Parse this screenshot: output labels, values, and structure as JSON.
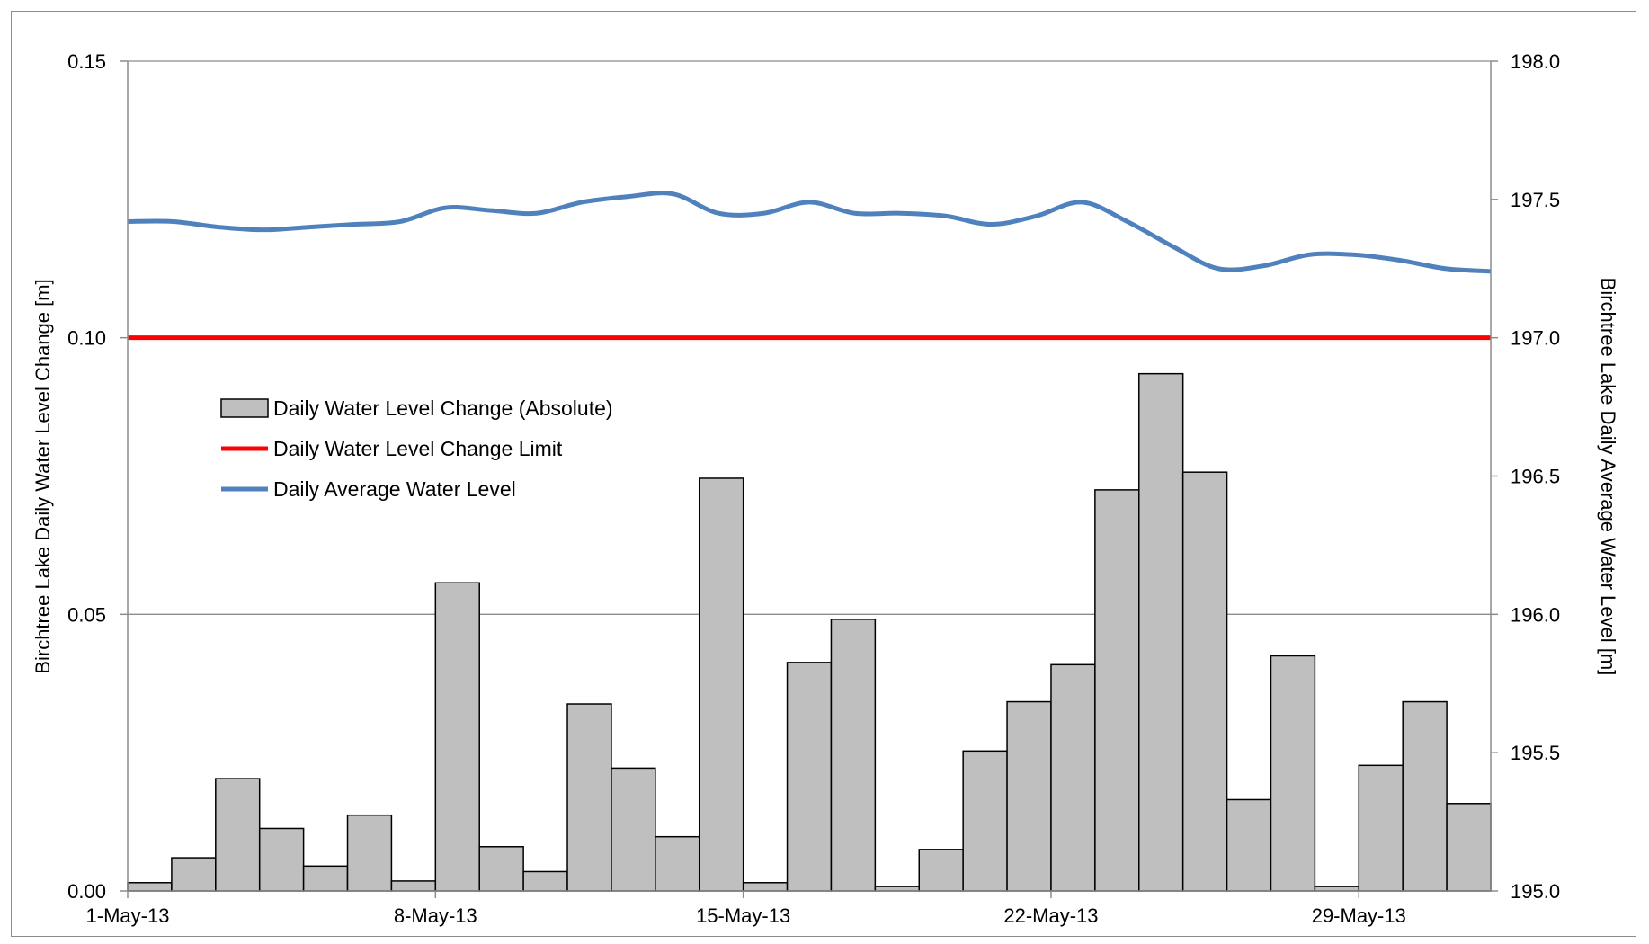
{
  "chart_data": {
    "type": "bar",
    "dates": [
      "1-May-13",
      "2-May-13",
      "3-May-13",
      "4-May-13",
      "5-May-13",
      "6-May-13",
      "7-May-13",
      "8-May-13",
      "9-May-13",
      "10-May-13",
      "11-May-13",
      "12-May-13",
      "13-May-13",
      "14-May-13",
      "15-May-13",
      "16-May-13",
      "17-May-13",
      "18-May-13",
      "19-May-13",
      "20-May-13",
      "21-May-13",
      "22-May-13",
      "23-May-13",
      "24-May-13",
      "25-May-13",
      "26-May-13",
      "27-May-13",
      "28-May-13",
      "29-May-13",
      "30-May-13",
      "31-May-13"
    ],
    "x_tick_labels": [
      "1-May-13",
      "8-May-13",
      "15-May-13",
      "22-May-13",
      "29-May-13"
    ],
    "x_tick_indices": [
      0,
      7,
      14,
      21,
      28
    ],
    "series": [
      {
        "name": "Daily Water Level Change (Absolute)",
        "type": "bar",
        "axis": "left",
        "color": "#bfbfbf",
        "values": [
          0.0015,
          0.006,
          0.0203,
          0.0113,
          0.0045,
          0.0137,
          0.0018,
          0.0557,
          0.008,
          0.0035,
          0.0338,
          0.0222,
          0.0098,
          0.0746,
          0.0015,
          0.0413,
          0.0491,
          0.0008,
          0.0075,
          0.0253,
          0.0342,
          0.0409,
          0.0725,
          0.0935,
          0.0757,
          0.0165,
          0.0425,
          0.0008,
          0.0227,
          0.0342,
          0.0158
        ]
      },
      {
        "name": "Daily Water Level Change Limit",
        "type": "line",
        "axis": "left",
        "color": "#ff0000",
        "value": 0.1
      },
      {
        "name": "Daily Average Water Level",
        "type": "line",
        "axis": "right",
        "color": "#4f81bd",
        "values": [
          197.42,
          197.42,
          197.4,
          197.39,
          197.4,
          197.41,
          197.42,
          197.47,
          197.46,
          197.45,
          197.49,
          197.51,
          197.52,
          197.45,
          197.45,
          197.49,
          197.45,
          197.45,
          197.44,
          197.41,
          197.44,
          197.49,
          197.42,
          197.33,
          197.25,
          197.26,
          197.3,
          197.3,
          197.28,
          197.25,
          197.24
        ]
      }
    ],
    "y_left": {
      "label": "Birchtree Lake Daily Water Level Change [m]",
      "range": [
        0,
        0.15
      ],
      "ticks": [
        "0.00",
        "0.05",
        "0.10",
        "0.15"
      ],
      "tick_values": [
        0,
        0.05,
        0.1,
        0.15
      ]
    },
    "y_right": {
      "label": "Birchtree Lake Daily Average Water Level [m]",
      "range": [
        195.0,
        198.0
      ],
      "ticks": [
        "195.0",
        "195.5",
        "196.0",
        "196.5",
        "197.0",
        "197.5",
        "198.0"
      ],
      "tick_values": [
        195.0,
        195.5,
        196.0,
        196.5,
        197.0,
        197.5,
        198.0
      ]
    },
    "grid": "horizontal",
    "legend_position": "upper-left"
  }
}
